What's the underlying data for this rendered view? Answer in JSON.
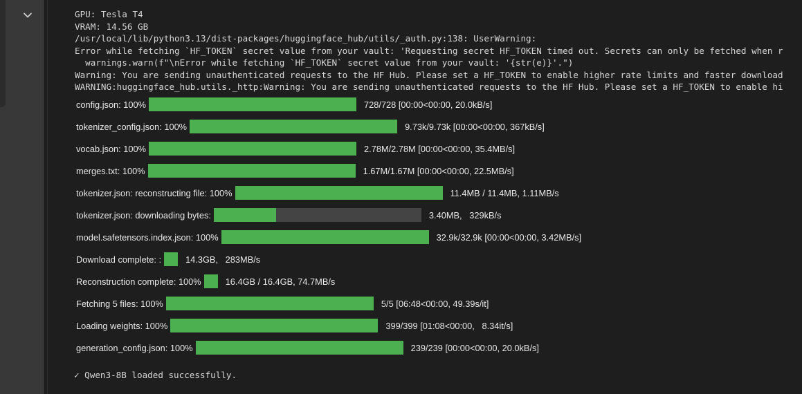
{
  "log_lines": [
    "GPU: Tesla T4",
    "VRAM: 14.56 GB",
    "/usr/local/lib/python3.13/dist-packages/huggingface_hub/utils/_auth.py:138: UserWarning:",
    "Error while fetching `HF_TOKEN` secret value from your vault: 'Requesting secret HF_TOKEN timed out. Secrets can only be fetched when r",
    "  warnings.warn(f\"\\nError while fetching `HF_TOKEN` secret value from your vault: '{str(e)}'.\")",
    "Warning: You are sending unauthenticated requests to the HF Hub. Please set a HF_TOKEN to enable higher rate limits and faster download",
    "WARNING:huggingface_hub.utils._http:Warning: You are sending unauthenticated requests to the HF Hub. Please set a HF_TOKEN to enable hi"
  ],
  "progress_bars": [
    {
      "label": "config.json: 100%",
      "progress": 1.0,
      "stats": "728/728 [00:00<00:00, 20.0kB/s]"
    },
    {
      "label": "tokenizer_config.json: 100%",
      "progress": 1.0,
      "stats": "9.73k/9.73k [00:00<00:00, 367kB/s]"
    },
    {
      "label": "vocab.json: 100%",
      "progress": 1.0,
      "stats": "2.78M/2.78M [00:00<00:00, 35.4MB/s]"
    },
    {
      "label": "merges.txt: 100%",
      "progress": 1.0,
      "stats": "1.67M/1.67M [00:00<00:00, 22.5MB/s]"
    },
    {
      "label": "tokenizer.json: reconstructing file: 100%",
      "progress": 1.0,
      "stats": "11.4MB / 11.4MB, 1.11MB/s"
    },
    {
      "label": "tokenizer.json: downloading bytes:",
      "progress": 0.3,
      "stats": "3.40MB,   329kB/s"
    },
    {
      "label": "model.safetensors.index.json: 100%",
      "progress": 1.0,
      "stats": "32.9k/32.9k [00:00<00:00, 3.42MB/s]"
    },
    {
      "label": "Download complete: :",
      "progress": 1.0,
      "stats": "14.3GB,   283MB/s"
    },
    {
      "label": "Reconstruction complete: 100%",
      "progress": 1.0,
      "stats": "16.4GB / 16.4GB, 74.7MB/s"
    },
    {
      "label": "Fetching 5 files: 100%",
      "progress": 1.0,
      "stats": "5/5 [06:48<00:00, 49.39s/it]"
    },
    {
      "label": "Loading weights: 100%",
      "progress": 1.0,
      "stats": "399/399 [01:08<00:00,   8.34it/s]"
    },
    {
      "label": "generation_config.json: 100%",
      "progress": 1.0,
      "stats": "239/239 [00:00<00:00, 20.0kB/s]"
    }
  ],
  "done_message": "✓ Qwen3-8B loaded successfully.",
  "colors": {
    "bar_fill": "#4caf50",
    "bar_track": "#444444",
    "background": "#1e1e1e"
  },
  "icons": {
    "collapse": "chevron-down-icon"
  }
}
